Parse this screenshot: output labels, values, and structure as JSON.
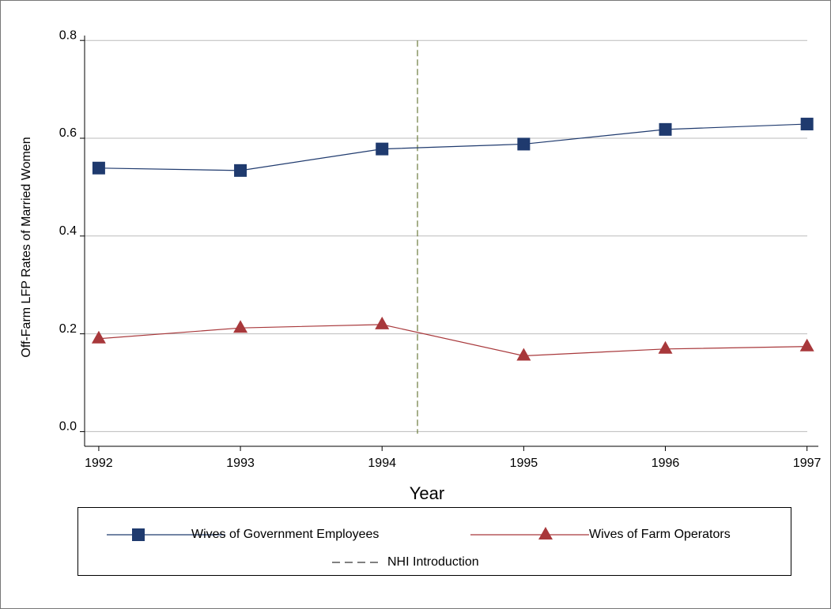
{
  "chart_data": {
    "type": "line",
    "x_label": "Year",
    "y_label": "Off-Farm LFP Rates of Married Women",
    "x": [
      1992,
      1993,
      1994,
      1995,
      1996,
      1997
    ],
    "series": [
      {
        "name": "Wives of Government Employees",
        "color": "#1f3a6e",
        "marker": "square",
        "values": [
          0.539,
          0.534,
          0.578,
          0.588,
          0.618,
          0.629
        ]
      },
      {
        "name": "Wives of Farm Operators",
        "color": "#a8383b",
        "marker": "triangle",
        "values": [
          0.19,
          0.212,
          0.219,
          0.155,
          0.169,
          0.174
        ]
      }
    ],
    "vline": {
      "name": "NHI Introduction",
      "x": 1994.25,
      "color": "#6b7a3c"
    },
    "xlim": [
      1991.9,
      1997.08
    ],
    "ylim": [
      -0.03,
      0.81
    ],
    "xticks": [
      1992,
      1993,
      1994,
      1995,
      1996,
      1997
    ],
    "yticks": [
      {
        "value": 0,
        "label": "0.0"
      },
      0.2,
      0.4,
      0.6,
      0.8
    ],
    "grid": true
  }
}
